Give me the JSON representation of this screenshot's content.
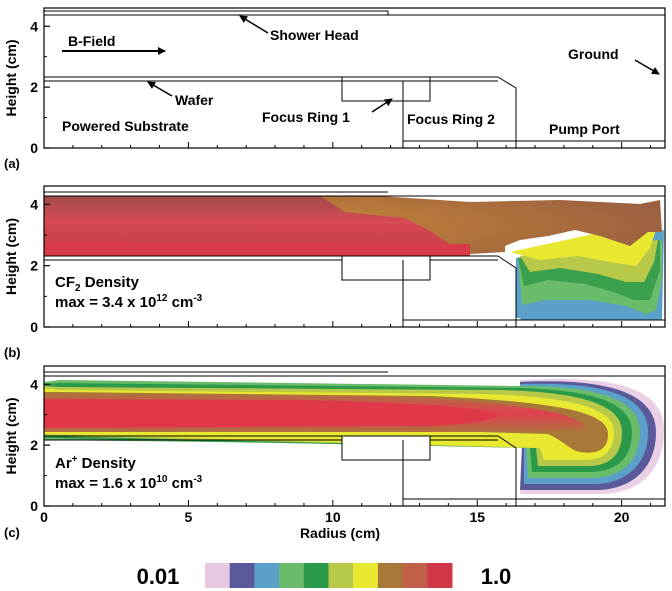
{
  "panels": {
    "a": {
      "tag": "(a)",
      "labels": {
        "b_field": "B-Field",
        "shower_head": "Shower Head",
        "ground": "Ground",
        "wafer": "Wafer",
        "focus_ring_1": "Focus Ring 1",
        "focus_ring_2": "Focus Ring 2",
        "powered_substrate": "Powered Substrate",
        "pump_port": "Pump Port"
      }
    },
    "b": {
      "tag": "(b)",
      "species": "CF",
      "species_sub": "2",
      "species_suffix": " Density",
      "max_prefix": "max = 3.4 x 10",
      "max_exp": "12",
      "max_unit": " cm",
      "max_unit_exp": "-3"
    },
    "c": {
      "tag": "(c)",
      "species": "Ar",
      "species_sup": "+",
      "species_suffix": " Density",
      "max_prefix": "max = 1.6 x 10",
      "max_exp": "10",
      "max_unit": " cm",
      "max_unit_exp": "-3"
    }
  },
  "axes": {
    "ylabel": "Height (cm)",
    "xlabel": "Radius (cm)",
    "y_ticks": [
      "0",
      "2",
      "4"
    ],
    "x_ticks": [
      "0",
      "5",
      "10",
      "15",
      "20"
    ],
    "x_range": [
      0,
      21.5
    ],
    "y_range": [
      0,
      4.6
    ]
  },
  "colorbar": {
    "min_label": "0.01",
    "max_label": "1.0",
    "scale": "log",
    "colors": [
      "#e8c8e0",
      "#5a5a9a",
      "#5aa0c8",
      "#6abb6a",
      "#2a9a4a",
      "#b8c848",
      "#e8e830",
      "#a87838",
      "#c06048",
      "#d03848"
    ]
  }
}
